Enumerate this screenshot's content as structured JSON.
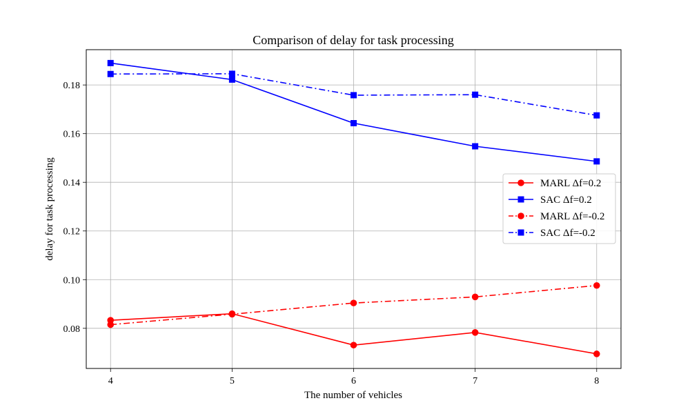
{
  "chart_data": {
    "type": "line",
    "title": "Comparison of delay for task processing",
    "xlabel": "The number of vehicles",
    "ylabel": "delay for task processing",
    "x": [
      4,
      5,
      6,
      7,
      8
    ],
    "x_ticks": [
      "4",
      "5",
      "6",
      "7",
      "8"
    ],
    "xlim": [
      3.8,
      8.2
    ],
    "y_ticks": [
      "0.08",
      "0.10",
      "0.12",
      "0.14",
      "0.16",
      "0.18"
    ],
    "y_tick_values": [
      0.08,
      0.1,
      0.12,
      0.14,
      0.16,
      0.18
    ],
    "ylim": [
      0.0635,
      0.1945
    ],
    "grid": true,
    "legend_position": "center-right",
    "series": [
      {
        "name": "MARL Δf=0.2",
        "color": "#ff0000",
        "marker": "circle",
        "linestyle": "solid",
        "values": [
          0.0833,
          0.086,
          0.0731,
          0.0783,
          0.0695
        ]
      },
      {
        "name": "SAC Δf=0.2",
        "color": "#0000ff",
        "marker": "square",
        "linestyle": "solid",
        "values": [
          0.189,
          0.1822,
          0.1643,
          0.1548,
          0.1486
        ]
      },
      {
        "name": "MARL Δf=-0.2",
        "color": "#ff0000",
        "marker": "circle",
        "linestyle": "dashdot",
        "values": [
          0.0815,
          0.0858,
          0.0904,
          0.0929,
          0.0976
        ]
      },
      {
        "name": "SAC Δf=-0.2",
        "color": "#0000ff",
        "marker": "square",
        "linestyle": "dashdot",
        "values": [
          0.1845,
          0.1846,
          0.1758,
          0.176,
          0.1675
        ]
      }
    ]
  }
}
